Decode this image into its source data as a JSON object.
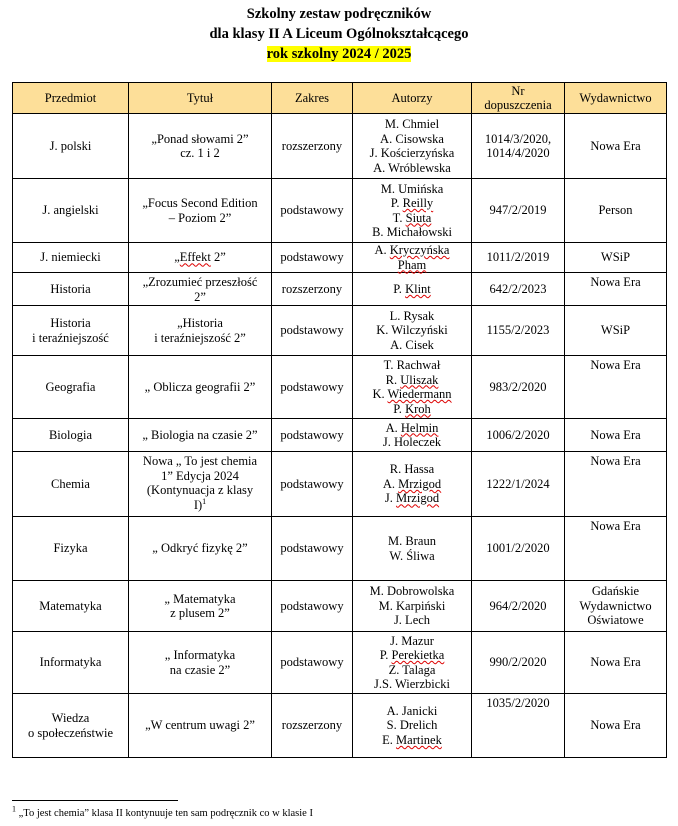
{
  "title": {
    "line1": "Szkolny zestaw podręczników",
    "line2": "dla klasy II A Liceum Ogólnokształcącego",
    "line3": "rok szkolny 2024 / 2025"
  },
  "table": {
    "headers": [
      "Przedmiot",
      "Tytuł",
      "Zakres",
      "Autorzy",
      "Nr\ndopuszczenia",
      "Wydawnictwo"
    ],
    "rows": [
      {
        "h": 65,
        "cells": [
          "J. polski",
          "„Ponad słowami 2”\ncz. 1 i 2",
          "rozszerzony",
          "M. Chmiel\nA. Cisowska\nJ. Kościerzyńska\nA. Wróblewska",
          "1014/3/2020,\n1014/4/2020",
          "Nowa Era"
        ],
        "top": []
      },
      {
        "h": 64,
        "cells": [
          "J. angielski",
          "„Focus Second Edition\n– Poziom 2”",
          "podstawowy",
          "M. Umińska\nP. Reilly\nT. Siuta\nB. Michałowski",
          "947/2/2019",
          "Person"
        ],
        "top": []
      },
      {
        "h": 30,
        "cells": [
          "J. niemiecki",
          "„Effekt 2”",
          "podstawowy",
          "A.  Kryczyńska\nPham",
          "1011/2/2019",
          "WSiP"
        ],
        "top": []
      },
      {
        "h": 33,
        "cells": [
          "Historia",
          "„Zrozumieć przeszłość\n2”",
          "rozszerzony",
          "P. Klint",
          "642/2/2023",
          "Nowa Era"
        ],
        "top": [
          1,
          5
        ]
      },
      {
        "h": 50,
        "cells": [
          "Historia\ni teraźniejszość",
          "„Historia\ni teraźniejszość 2”",
          "podstawowy",
          "L. Rysak\nK. Wilczyński\nA. Cisek",
          "1155/2/2023",
          "WSiP"
        ],
        "top": []
      },
      {
        "h": 63,
        "cells": [
          "Geografia",
          "„ Oblicza geografii 2”",
          "podstawowy",
          "T. Rachwał\nR. Uliszak\nK. Wiedermann\nP. Kroh",
          "983/2/2020",
          "Nowa Era"
        ],
        "top": [
          5
        ]
      },
      {
        "h": 33,
        "cells": [
          "Biologia",
          "„ Biologia na czasie 2”",
          "podstawowy",
          "A. Helmin\nJ. Holeczek",
          "1006/2/2020",
          "Nowa Era"
        ],
        "top": []
      },
      {
        "h": 65,
        "cells": [
          "Chemia",
          "Nowa „ To jest chemia\n1” Edycja 2024\n(Kontynuacja z klasy\nI)",
          "podstawowy",
          "R. Hassa\nA. Mrzigod\nJ. Mrzigod",
          "1222/1/2024",
          "Nowa Era"
        ],
        "top": [
          1,
          5
        ],
        "footnote_mark": "1"
      },
      {
        "h": 64,
        "cells": [
          "Fizyka",
          "„ Odkryć fizykę 2”",
          "podstawowy",
          "M. Braun\nW. Śliwa",
          "1001/2/2020",
          "Nowa Era"
        ],
        "top": [
          5
        ]
      },
      {
        "h": 51,
        "cells": [
          "Matematyka",
          "„ Matematyka\nz plusem 2”",
          "podstawowy",
          "M. Dobrowolska\nM. Karpiński\nJ. Lech",
          "964/2/2020",
          "Gdańskie\nWydawnictwo\nOświatowe"
        ],
        "top": []
      },
      {
        "h": 62,
        "cells": [
          "Informatyka",
          "„ Informatyka\nna czasie 2”",
          "podstawowy",
          "J. Mazur\nP. Perekietka\nZ. Talaga\nJ.S. Wierzbicki",
          "990/2/2020",
          "Nowa Era"
        ],
        "top": []
      },
      {
        "h": 64,
        "cells": [
          "Wiedza\no społeczeństwie",
          "„W centrum uwagi 2”",
          "rozszerzony",
          "A. Janicki\nS. Drelich\nE. Martinek",
          "1035/2/2020",
          "Nowa Era"
        ],
        "top": [
          4
        ]
      }
    ]
  },
  "footnote": {
    "mark": "1",
    "text": " „To jest chemia” klasa II kontynuuje ten sam podręcznik co w klasie I"
  }
}
